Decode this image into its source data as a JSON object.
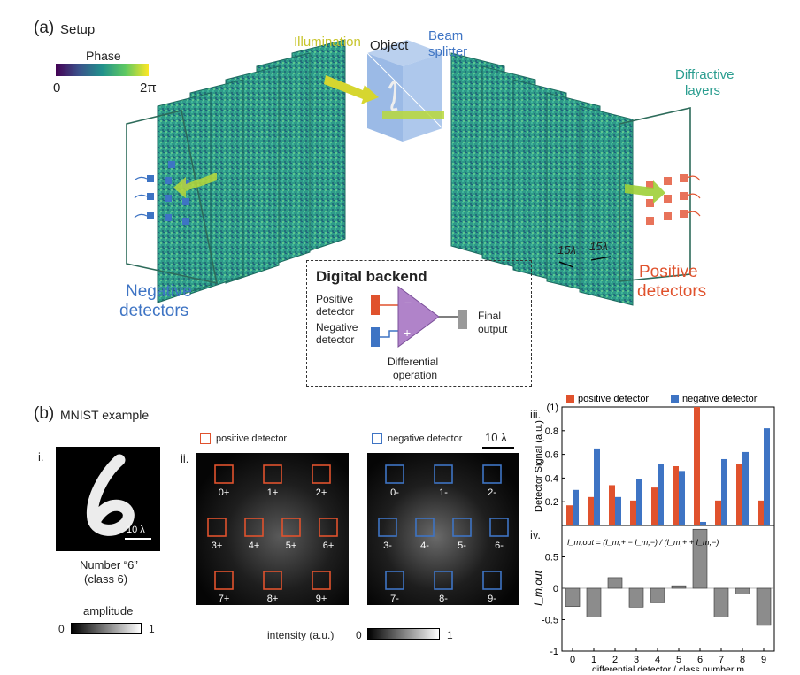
{
  "panel_a": {
    "label": "(a)",
    "title": "Setup",
    "phase_bar": {
      "title": "Phase",
      "min": "0",
      "max": "2π"
    },
    "illumination": "Illumination",
    "object": "Object",
    "beam_splitter": [
      "Beam",
      "splitter"
    ],
    "diffractive_layers": [
      "Diffractive",
      "layers"
    ],
    "scale_left": "15λ",
    "scale_right": "15λ",
    "negative_detectors": [
      "Negative",
      "detectors"
    ],
    "positive_detectors": [
      "Positive",
      "detectors"
    ],
    "backend": {
      "title": "Digital backend",
      "positive_detector": [
        "Positive",
        "detector"
      ],
      "negative_detector": [
        "Negative",
        "detector"
      ],
      "minus": "−",
      "plus": "+",
      "final_output": [
        "Final",
        "output"
      ],
      "operation": [
        "Differential",
        "operation"
      ]
    }
  },
  "panel_b": {
    "label": "(b)",
    "title": "MNIST example",
    "sub_i": {
      "numeral": "i.",
      "scale": "10 λ",
      "caption": [
        "Number “6”",
        "(class 6)"
      ],
      "amplitude_label": "amplitude",
      "amp_min": "0",
      "amp_max": "1"
    },
    "sub_ii": {
      "numeral": "ii.",
      "legend_positive": "positive detector",
      "legend_negative": "negative detector",
      "scale": "10 λ",
      "positive_labels": [
        "0+",
        "1+",
        "2+",
        "3+",
        "4+",
        "5+",
        "6+",
        "7+",
        "8+",
        "9+"
      ],
      "negative_labels": [
        "0-",
        "1-",
        "2-",
        "3-",
        "4-",
        "5-",
        "6-",
        "7-",
        "8-",
        "9-"
      ],
      "intensity_label": "intensity (a.u.)",
      "int_min": "0",
      "int_max": "1"
    },
    "sub_iii": {
      "numeral": "iii."
    },
    "sub_iv": {
      "numeral": "iv."
    }
  },
  "colors": {
    "positive": "#e0522d",
    "negative": "#3e74c4",
    "diff_bar": "#8c8c8c",
    "amplifier": "#b083c9",
    "layer": "#2f9e8c",
    "frame": "#2d6b5a"
  },
  "chart_data": [
    {
      "type": "bar",
      "categories": [
        "0",
        "1",
        "2",
        "3",
        "4",
        "5",
        "6",
        "7",
        "8",
        "9"
      ],
      "ylabel": "Detector Signal (a.u.)",
      "ylim": [
        0,
        1
      ],
      "yticks": [
        "0.2",
        "0.4",
        "0.6",
        "0.8",
        "(1)"
      ],
      "series": [
        {
          "name": "positive detector",
          "color": "#e0522d",
          "values": [
            0.17,
            0.24,
            0.34,
            0.21,
            0.32,
            0.5,
            1.0,
            0.21,
            0.52,
            0.21
          ]
        },
        {
          "name": "negative detector",
          "color": "#3e74c4",
          "values": [
            0.3,
            0.65,
            0.24,
            0.39,
            0.52,
            0.46,
            0.03,
            0.56,
            0.62,
            0.82
          ]
        }
      ],
      "legend": "top"
    },
    {
      "type": "bar",
      "categories": [
        "0",
        "1",
        "2",
        "3",
        "4",
        "5",
        "6",
        "7",
        "8",
        "9"
      ],
      "xlabel": "differential detector / class number m",
      "ylabel": "I_m,out",
      "ylim": [
        -1,
        1
      ],
      "yticks": [
        "0.5",
        "0",
        "-0.5",
        "-1"
      ],
      "formula": "I_m,out = (I_m,+ − I_m,−) / (I_m,+ + I_m,−)",
      "series": [
        {
          "name": "",
          "color": "#8c8c8c",
          "values": [
            -0.29,
            -0.46,
            0.17,
            -0.3,
            -0.23,
            0.04,
            0.94,
            -0.46,
            -0.09,
            -0.59
          ]
        }
      ]
    }
  ]
}
